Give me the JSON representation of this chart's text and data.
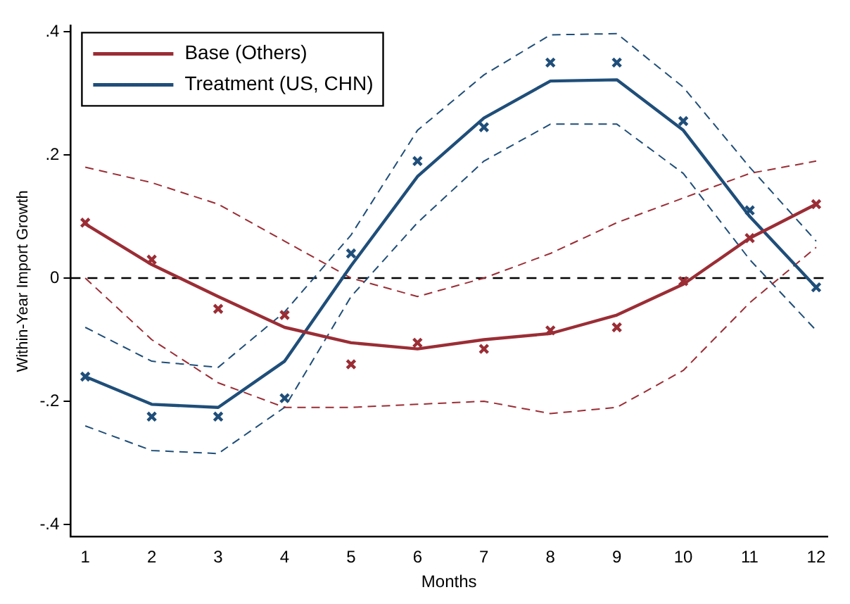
{
  "chart_data": {
    "type": "line",
    "xlabel": "Months",
    "ylabel": "Within-Year Import Growth",
    "xlim": [
      0.78,
      12.17
    ],
    "xticks": [
      1,
      2,
      3,
      4,
      5,
      6,
      7,
      8,
      9,
      10,
      11,
      12
    ],
    "ylim": [
      -0.42,
      0.41
    ],
    "yticks": [
      {
        "value": -0.4,
        "label": "-.4"
      },
      {
        "value": -0.2,
        "label": "-.2"
      },
      0,
      {
        "value": 0.2,
        "label": ".2"
      },
      {
        "value": 0.4,
        "label": ".4"
      }
    ],
    "grid": false,
    "legend": "top left",
    "ref_lines": [
      {
        "axis": "y",
        "value": 0,
        "color": "#000000",
        "line_style": "dashed"
      }
    ],
    "series": [
      {
        "name": "Base (Others)",
        "color": "#9b2d35",
        "marker": "none",
        "line_style": "solid",
        "x": [
          1,
          2,
          3,
          4,
          5,
          6,
          7,
          8,
          9,
          10,
          11,
          12
        ],
        "values": [
          0.088,
          0.022,
          -0.03,
          -0.08,
          -0.105,
          -0.115,
          -0.1,
          -0.09,
          -0.06,
          -0.01,
          0.065,
          0.12
        ]
      },
      {
        "name": "Treatment (US, CHN)",
        "color": "#1f4e79",
        "marker": "none",
        "line_style": "solid",
        "x": [
          1,
          2,
          3,
          4,
          5,
          6,
          7,
          8,
          9,
          10,
          11,
          12
        ],
        "values": [
          -0.16,
          -0.205,
          -0.21,
          -0.135,
          0.02,
          0.165,
          0.26,
          0.32,
          0.322,
          0.24,
          0.1,
          -0.015
        ]
      },
      {
        "color": "#9b2d35",
        "marker": "none",
        "line_style": "dashed",
        "x": [
          1,
          2,
          3,
          4,
          5,
          6,
          7,
          8,
          9,
          10,
          11,
          12
        ],
        "values": [
          0.18,
          0.155,
          0.12,
          0.06,
          0.0,
          -0.03,
          0.0,
          0.04,
          0.09,
          0.13,
          0.17,
          0.19
        ]
      },
      {
        "color": "#9b2d35",
        "marker": "none",
        "line_style": "dashed",
        "x": [
          1,
          2,
          3,
          4,
          5,
          6,
          7,
          8,
          9,
          10,
          11,
          12
        ],
        "values": [
          0.0,
          -0.1,
          -0.17,
          -0.21,
          -0.21,
          -0.205,
          -0.2,
          -0.22,
          -0.21,
          -0.15,
          -0.04,
          0.05
        ]
      },
      {
        "color": "#1f4e79",
        "marker": "none",
        "line_style": "dashed",
        "x": [
          1,
          2,
          3,
          4,
          5,
          6,
          7,
          8,
          9,
          10,
          11,
          12
        ],
        "values": [
          -0.08,
          -0.135,
          -0.145,
          -0.055,
          0.07,
          0.24,
          0.33,
          0.395,
          0.397,
          0.31,
          0.18,
          0.06
        ]
      },
      {
        "color": "#1f4e79",
        "marker": "none",
        "line_style": "dashed",
        "x": [
          1,
          2,
          3,
          4,
          5,
          6,
          7,
          8,
          9,
          10,
          11,
          12
        ],
        "values": [
          -0.24,
          -0.28,
          -0.285,
          -0.21,
          -0.03,
          0.09,
          0.19,
          0.25,
          0.25,
          0.17,
          0.03,
          -0.085
        ]
      },
      {
        "type": "scatter",
        "color": "#9b2d35",
        "marker": "cross",
        "x": [
          1,
          2,
          3,
          4,
          5,
          6,
          7,
          8,
          9,
          10,
          11,
          12
        ],
        "values": [
          0.09,
          0.03,
          -0.05,
          -0.06,
          -0.14,
          -0.105,
          -0.115,
          -0.085,
          -0.08,
          -0.005,
          0.065,
          0.12
        ]
      },
      {
        "type": "scatter",
        "color": "#1f4e79",
        "marker": "cross",
        "x": [
          1,
          2,
          3,
          4,
          5,
          6,
          7,
          8,
          9,
          10,
          11,
          12
        ],
        "values": [
          -0.16,
          -0.225,
          -0.225,
          -0.195,
          0.04,
          0.19,
          0.245,
          0.35,
          0.35,
          0.255,
          0.11,
          -0.015
        ]
      }
    ]
  }
}
